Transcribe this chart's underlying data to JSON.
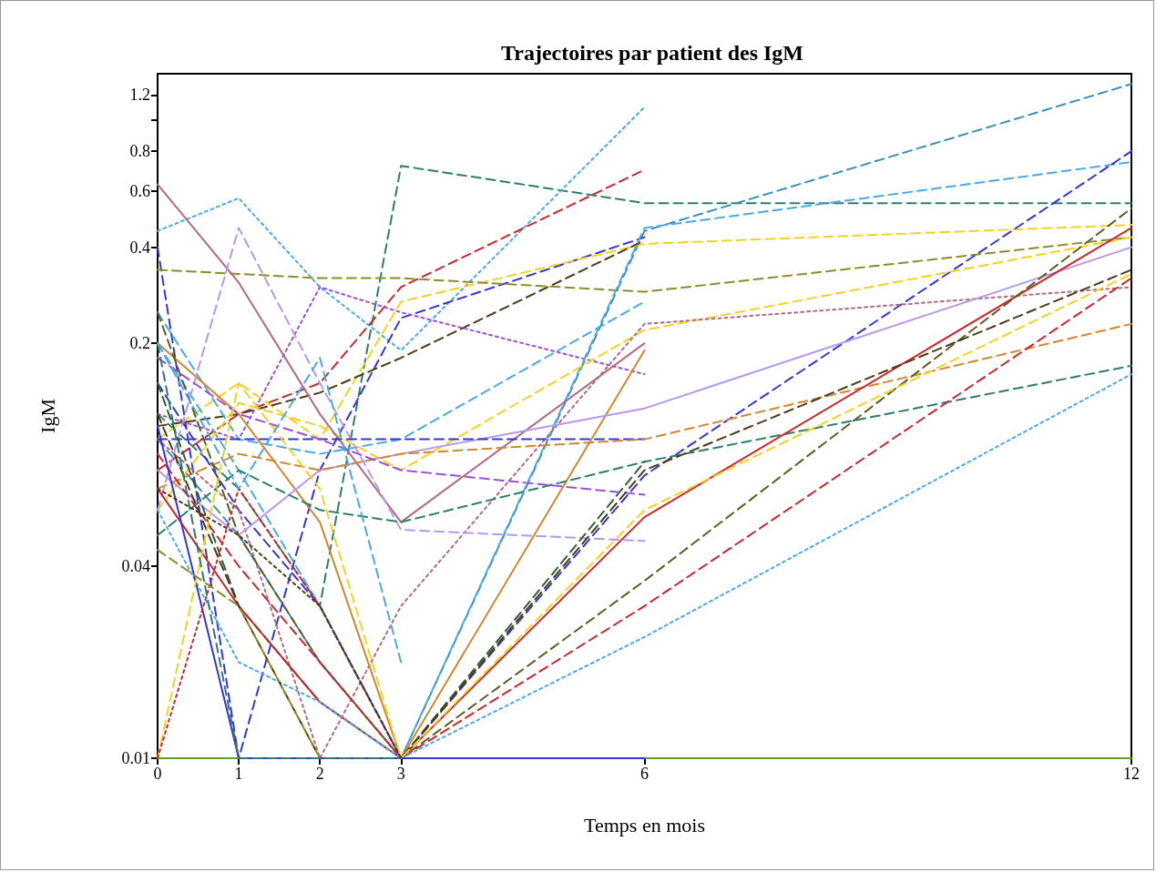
{
  "chart_data": {
    "type": "line",
    "title": "Trajectoires par patient des IgM",
    "xlabel": "Temps en mois",
    "ylabel": "IgM",
    "log": "y",
    "grid": false,
    "marker": "none",
    "x": [
      0,
      1,
      2,
      3,
      6,
      12
    ],
    "xlim": [
      0,
      12
    ],
    "xticks": [
      0,
      1,
      2,
      3,
      6,
      12
    ],
    "ylim": [
      0.01,
      1.4
    ],
    "yticks": [
      0.01,
      0.04,
      0.2,
      0.4,
      0.6,
      0.8,
      {
        "value": 1,
        "label": null
      },
      1.2
    ],
    "series": [
      {
        "color": "#2e7d6b",
        "line_style": "dashed",
        "values": [
          0.12,
          0.07,
          0.03,
          0.72,
          0.55,
          0.55
        ]
      },
      {
        "color": "#3a8fb5",
        "line_style": "dashed",
        "values": [
          0.1,
          0.05,
          0.02,
          0.01,
          0.45,
          1.3
        ]
      },
      {
        "color": "#4aa8e8",
        "line_style": "dotted",
        "values": [
          0.45,
          0.57,
          0.3,
          0.19,
          1.1,
          null
        ]
      },
      {
        "color": "#c8282d",
        "line_style": "dashed",
        "values": [
          0.08,
          0.12,
          0.15,
          0.3,
          0.7,
          null
        ]
      },
      {
        "color": "#3535d5",
        "line_style": "dashed",
        "values": [
          0.4,
          0.01,
          0.08,
          0.24,
          0.43,
          null
        ]
      },
      {
        "color": "#f2d21e",
        "line_style": "dashed",
        "values": [
          0.1,
          0.15,
          0.1,
          0.27,
          0.41,
          0.47
        ]
      },
      {
        "color": "#8c8c2a",
        "line_style": "dashed",
        "values": [
          0.34,
          0.33,
          0.32,
          0.32,
          0.29,
          0.43
        ]
      },
      {
        "color": "#4d3b17",
        "line_style": "dashed",
        "values": [
          0.11,
          0.12,
          0.14,
          0.18,
          0.42,
          null
        ]
      },
      {
        "color": "#9b4fd6",
        "line_style": "dotted",
        "values": [
          0.12,
          0.1,
          0.3,
          0.25,
          0.16,
          null
        ]
      },
      {
        "color": "#4aa8e8",
        "line_style": "dashed",
        "values": [
          0.25,
          0.1,
          0.09,
          0.1,
          0.27,
          null
        ]
      },
      {
        "color": "#4aa8e8",
        "line_style": "dashed",
        "values": [
          0.2,
          0.08,
          0.03,
          0.01,
          0.46,
          0.74
        ]
      },
      {
        "color": "#3535d5",
        "line_style": "dashed",
        "values": [
          0.15,
          0.06,
          0.03,
          0.01,
          0.077,
          0.8
        ]
      },
      {
        "color": "#f2d21e",
        "line_style": "dashed",
        "values": [
          0.06,
          0.13,
          0.11,
          0.08,
          0.22,
          0.43
        ]
      },
      {
        "color": "#b06a82",
        "line_style": "dotted",
        "values": [
          0.1,
          0.06,
          0.01,
          0.03,
          0.23,
          0.3
        ]
      },
      {
        "color": "#b06a82",
        "line_style": "solid",
        "values": [
          0.63,
          0.31,
          0.12,
          0.055,
          0.2,
          null
        ]
      },
      {
        "color": "#d2862e",
        "line_style": "solid",
        "values": [
          0.2,
          0.12,
          0.055,
          0.01,
          0.19,
          null
        ]
      },
      {
        "color": "#b596f0",
        "line_style": "dashed",
        "values": [
          0.06,
          0.46,
          0.15,
          0.052,
          0.048,
          null
        ]
      },
      {
        "color": "#b596f0",
        "line_style": "solid",
        "values": [
          0.08,
          0.05,
          0.08,
          0.09,
          0.125,
          0.4
        ]
      },
      {
        "color": "#3535d5",
        "line_style": "dashed",
        "values": [
          0.1,
          0.1,
          0.1,
          0.1,
          0.1,
          null
        ]
      },
      {
        "color": "#d2862e",
        "line_style": "dashed",
        "values": [
          0.07,
          0.09,
          0.08,
          0.09,
          0.1,
          0.23
        ]
      },
      {
        "color": "#2e7d6b",
        "line_style": "dashed",
        "values": [
          0.05,
          0.08,
          0.06,
          0.055,
          0.085,
          0.17
        ]
      },
      {
        "color": "#2f5f3a",
        "line_style": "dashed",
        "values": [
          0.15,
          0.03,
          0.015,
          0.01,
          0.085,
          null
        ]
      },
      {
        "color": "#9b4fd6",
        "line_style": "dashed",
        "values": [
          0.18,
          0.12,
          0.1,
          0.08,
          0.067,
          null
        ]
      },
      {
        "color": "#c8282d",
        "line_style": "solid",
        "values": [
          0.07,
          0.03,
          0.015,
          0.01,
          0.057,
          0.46
        ]
      },
      {
        "color": "#5d5d22",
        "line_style": "dashed",
        "values": [
          0.25,
          0.05,
          0.02,
          0.01,
          0.036,
          0.53
        ]
      },
      {
        "color": "#c8282d",
        "line_style": "dashed",
        "values": [
          0.09,
          0.04,
          0.02,
          0.01,
          0.03,
          0.32
        ]
      },
      {
        "color": "#4aa8e8",
        "line_style": "dotted",
        "values": [
          0.06,
          0.02,
          0.015,
          0.01,
          0.024,
          0.16
        ]
      },
      {
        "color": "#4d3b17",
        "line_style": "dashed",
        "values": [
          0.12,
          0.03,
          0.01,
          0.01,
          0.08,
          0.34
        ]
      },
      {
        "color": "#5d9e33",
        "line_style": "solid",
        "values": [
          0.01,
          0.01,
          0.01,
          0.01,
          0.01,
          0.01
        ]
      },
      {
        "color": "#3535d5",
        "line_style": "solid",
        "values": [
          0.11,
          0.01,
          0.01,
          0.01,
          0.01,
          null
        ]
      },
      {
        "color": "#f2d21e",
        "line_style": "dashed",
        "values": [
          0.01,
          0.15,
          0.07,
          0.01,
          0.06,
          0.33
        ]
      },
      {
        "color": "#c8282d",
        "line_style": "dotted",
        "values": [
          0.01,
          0.07,
          0.03,
          0.01,
          null,
          null
        ]
      },
      {
        "color": "#8c8c2a",
        "line_style": "dashed",
        "values": [
          0.045,
          0.03,
          0.01,
          0.01,
          null,
          null
        ]
      },
      {
        "color": "#2e7d6b",
        "line_style": "dashed",
        "values": [
          0.2,
          0.01,
          0.01,
          0.01,
          null,
          null
        ]
      },
      {
        "color": "#4d3b17",
        "line_style": "dotted",
        "values": [
          0.07,
          0.05,
          0.03,
          0.01,
          null,
          null
        ]
      },
      {
        "color": "#4aa8e8",
        "line_style": "dashed",
        "values": [
          0.2,
          0.07,
          0.18,
          0.02,
          null,
          null
        ]
      }
    ]
  }
}
